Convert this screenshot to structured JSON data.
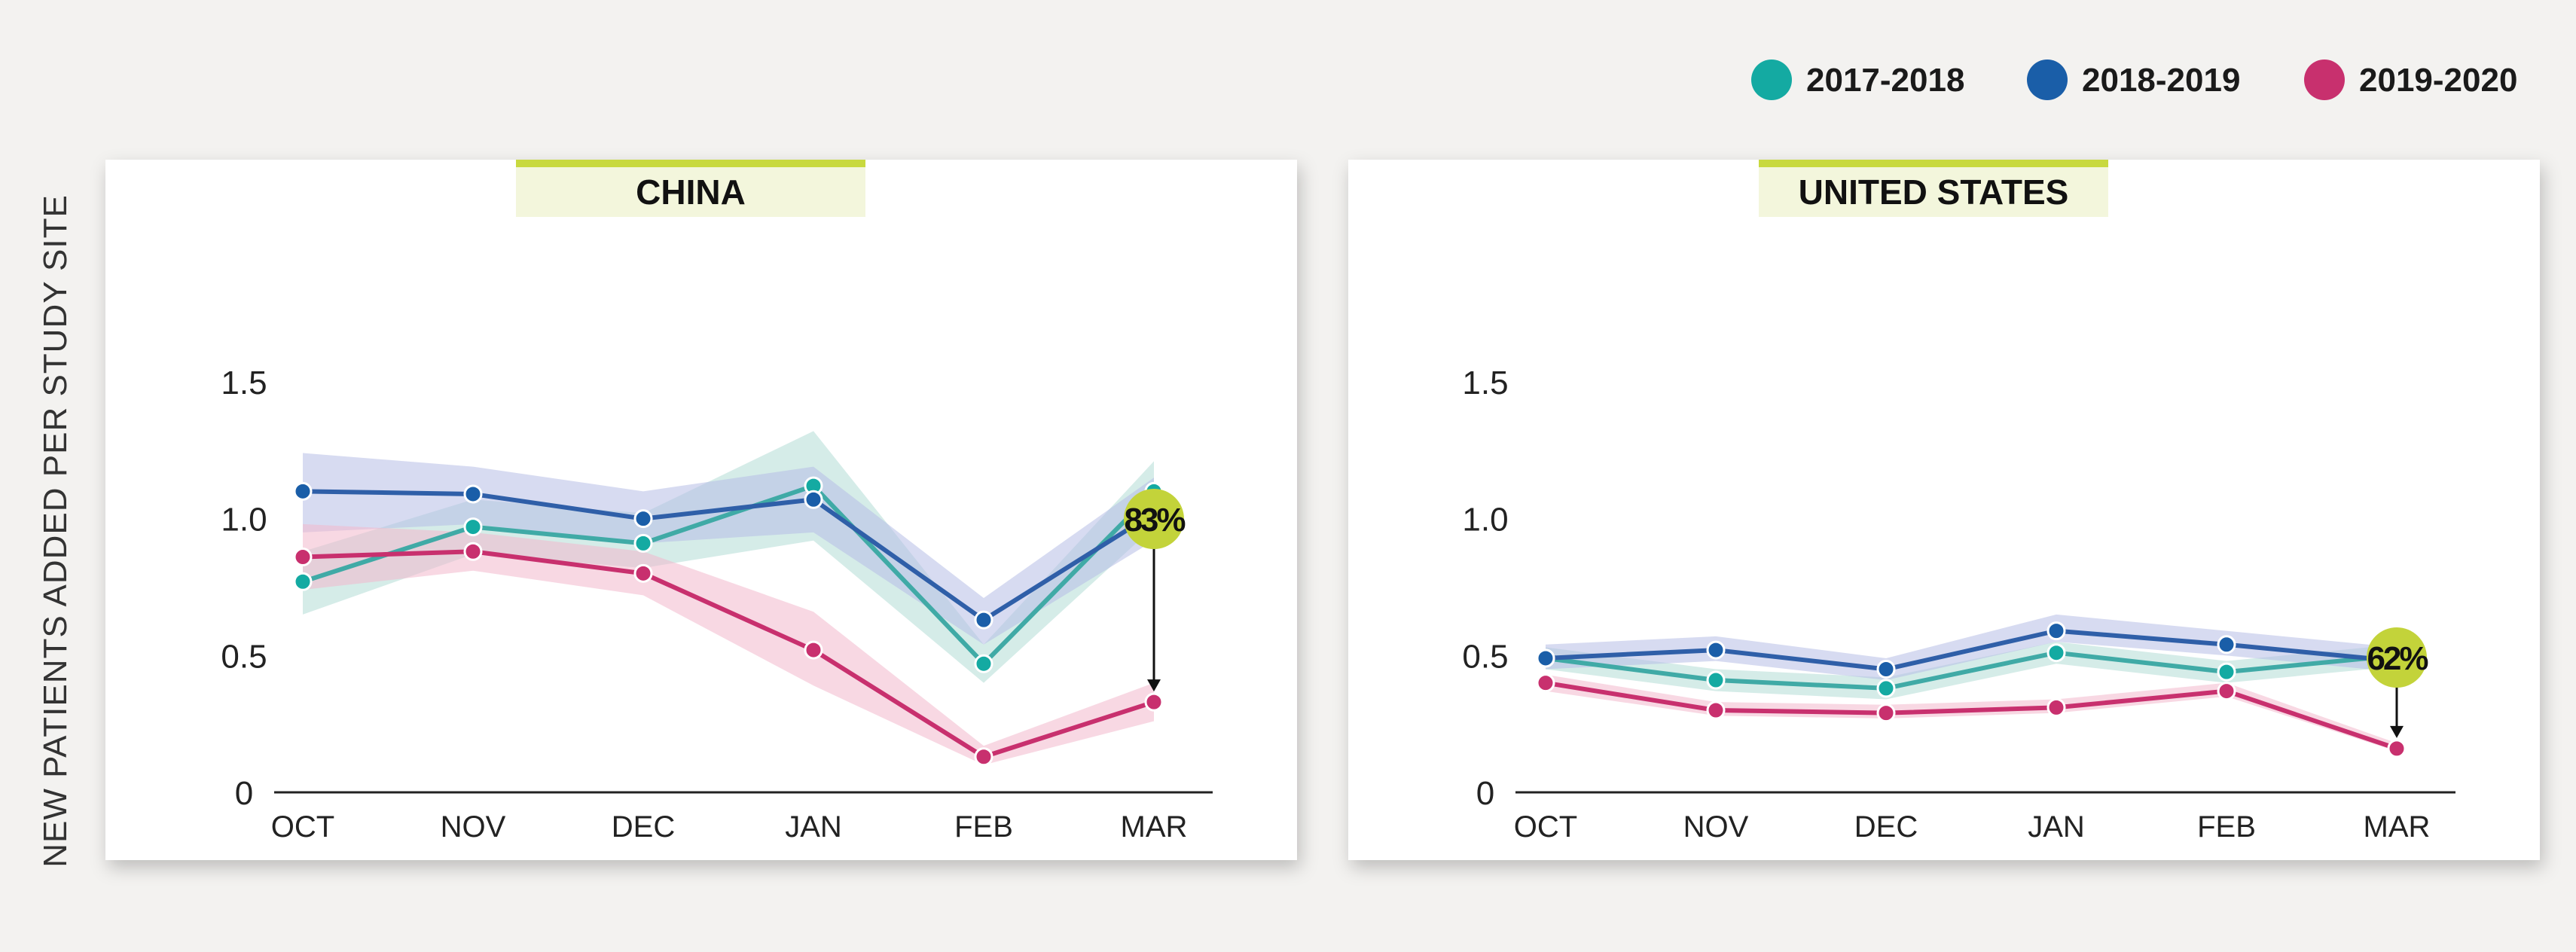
{
  "legend": [
    {
      "label": "2017-2018",
      "color": "#14aaa2"
    },
    {
      "label": "2018-2019",
      "color": "#1a5ea8"
    },
    {
      "label": "2019-2020",
      "color": "#c8306e"
    }
  ],
  "ylabel": "NEW PATIENTS ADDED PER STUDY SITE",
  "chart_data": [
    {
      "type": "line",
      "title": "CHINA",
      "categories": [
        "OCT",
        "NOV",
        "DEC",
        "JAN",
        "FEB",
        "MAR"
      ],
      "ylim": [
        0,
        1.5
      ],
      "yticks": [
        0,
        0.5,
        1.0,
        1.5
      ],
      "ytick_labels": [
        "0",
        "0.5",
        "1.0",
        "1.5"
      ],
      "series": [
        {
          "name": "2017-2018",
          "color": "#14aaa2",
          "band_color": "#b2dcd6",
          "line_color": "#40aaa6",
          "values": [
            0.77,
            0.97,
            0.91,
            1.12,
            0.47,
            1.1
          ],
          "band_low": [
            0.65,
            0.87,
            0.82,
            0.92,
            0.4,
            0.97
          ],
          "band_high": [
            0.88,
            1.07,
            1.02,
            1.32,
            0.54,
            1.21
          ]
        },
        {
          "name": "2018-2019",
          "color": "#1a5ea8",
          "band_color": "#b6bde6",
          "line_color": "#2f5fa8",
          "values": [
            1.1,
            1.09,
            1.0,
            1.07,
            0.63,
            1.02
          ],
          "band_low": [
            0.95,
            0.98,
            0.91,
            0.95,
            0.54,
            0.92
          ],
          "band_high": [
            1.24,
            1.19,
            1.1,
            1.19,
            0.71,
            1.15
          ]
        },
        {
          "name": "2019-2020",
          "color": "#c8306e",
          "band_color": "#f2b8cc",
          "line_color": "#c8306e",
          "values": [
            0.86,
            0.88,
            0.8,
            0.52,
            0.13,
            0.33
          ],
          "band_low": [
            0.74,
            0.81,
            0.72,
            0.39,
            0.1,
            0.26
          ],
          "band_high": [
            0.98,
            0.95,
            0.88,
            0.66,
            0.17,
            0.4
          ]
        }
      ],
      "annotation": {
        "text": "83%"
      }
    },
    {
      "type": "line",
      "title": "UNITED STATES",
      "categories": [
        "OCT",
        "NOV",
        "DEC",
        "JAN",
        "FEB",
        "MAR"
      ],
      "ylim": [
        0,
        1.5
      ],
      "yticks": [
        0,
        0.5,
        1.0,
        1.5
      ],
      "ytick_labels": [
        "0",
        "0.5",
        "1.0",
        "1.5"
      ],
      "series": [
        {
          "name": "2017-2018",
          "color": "#14aaa2",
          "band_color": "#b2dcd6",
          "line_color": "#40aaa6",
          "values": [
            0.49,
            0.41,
            0.38,
            0.51,
            0.44,
            0.5
          ],
          "band_low": [
            0.45,
            0.37,
            0.34,
            0.47,
            0.4,
            0.46
          ],
          "band_high": [
            0.53,
            0.45,
            0.42,
            0.55,
            0.48,
            0.54
          ]
        },
        {
          "name": "2018-2019",
          "color": "#1a5ea8",
          "band_color": "#b6bde6",
          "line_color": "#2f5fa8",
          "values": [
            0.49,
            0.52,
            0.45,
            0.59,
            0.54,
            0.48
          ],
          "band_low": [
            0.45,
            0.48,
            0.41,
            0.55,
            0.5,
            0.44
          ],
          "band_high": [
            0.54,
            0.57,
            0.49,
            0.65,
            0.59,
            0.53
          ]
        },
        {
          "name": "2019-2020",
          "color": "#c8306e",
          "band_color": "#f2b8cc",
          "line_color": "#c8306e",
          "values": [
            0.4,
            0.3,
            0.29,
            0.31,
            0.37,
            0.16
          ],
          "band_low": [
            0.37,
            0.28,
            0.27,
            0.29,
            0.35,
            0.15
          ],
          "band_high": [
            0.43,
            0.33,
            0.32,
            0.34,
            0.4,
            0.18
          ]
        }
      ],
      "annotation": {
        "text": "62%"
      }
    }
  ]
}
